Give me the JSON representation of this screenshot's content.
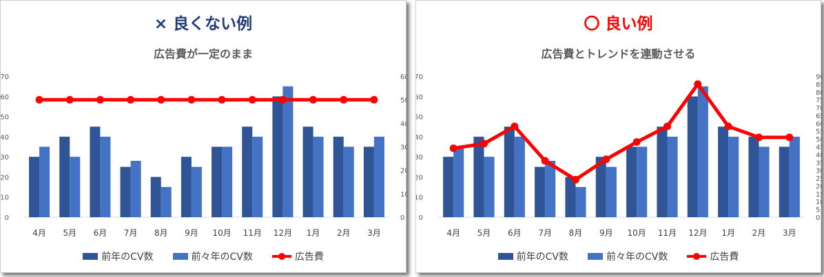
{
  "left": {
    "heading": "× 良くない例",
    "subtitle": "広告費が一定のまま"
  },
  "right": {
    "heading": "〇 良い例",
    "subtitle": "広告費とトレンドを連動させる"
  },
  "legend": {
    "prev_year": "前年のCV数",
    "two_years_ago": "前々年のCV数",
    "ad_cost": "広告費"
  },
  "colors": {
    "prev_year": "#2f5597",
    "two_years_ago": "#4472c4",
    "ad_cost": "#ff0000"
  },
  "chart_data": [
    {
      "type": "bar",
      "title": "広告費が一定のまま",
      "categories": [
        "4月",
        "5月",
        "6月",
        "7月",
        "8月",
        "9月",
        "10月",
        "11月",
        "12月",
        "1月",
        "2月",
        "3月"
      ],
      "ylim": [
        0,
        70
      ],
      "y2lim": [
        0,
        60
      ],
      "yticks": [
        0,
        10,
        20,
        30,
        40,
        50,
        60,
        70
      ],
      "y2ticks": [
        0,
        10,
        20,
        30,
        40,
        50,
        60
      ],
      "grid": false,
      "legend_position": "bottom",
      "series": [
        {
          "name": "前年のCV数",
          "type": "bar",
          "axis": "left",
          "values": [
            30,
            40,
            45,
            25,
            20,
            30,
            35,
            45,
            60,
            45,
            40,
            35
          ]
        },
        {
          "name": "前々年のCV数",
          "type": "bar",
          "axis": "left",
          "values": [
            35,
            30,
            40,
            28,
            15,
            25,
            35,
            40,
            65,
            40,
            35,
            40
          ]
        },
        {
          "name": "広告費",
          "type": "line",
          "axis": "right",
          "values": [
            50,
            50,
            50,
            50,
            50,
            50,
            50,
            50,
            50,
            50,
            50,
            50
          ]
        }
      ]
    },
    {
      "type": "bar",
      "title": "広告費とトレンドを連動させる",
      "categories": [
        "4月",
        "5月",
        "6月",
        "7月",
        "8月",
        "9月",
        "10月",
        "11月",
        "12月",
        "1月",
        "2月",
        "3月"
      ],
      "ylim": [
        0,
        70
      ],
      "y2lim": [
        0,
        90
      ],
      "yticks": [
        0,
        10,
        20,
        30,
        40,
        50,
        60,
        70
      ],
      "y2ticks": [
        0,
        5,
        10,
        15,
        20,
        25,
        30,
        35,
        40,
        45,
        50,
        55,
        60,
        65,
        70,
        75,
        80,
        85,
        90
      ],
      "grid": false,
      "legend_position": "bottom",
      "series": [
        {
          "name": "前年のCV数",
          "type": "bar",
          "axis": "left",
          "values": [
            30,
            40,
            45,
            25,
            20,
            30,
            35,
            45,
            60,
            45,
            40,
            35
          ]
        },
        {
          "name": "前々年のCV数",
          "type": "bar",
          "axis": "left",
          "values": [
            35,
            30,
            40,
            28,
            15,
            25,
            35,
            40,
            65,
            40,
            35,
            40
          ]
        },
        {
          "name": "広告費",
          "type": "line",
          "axis": "right",
          "values": [
            44,
            47,
            58,
            36,
            24,
            37,
            48,
            58,
            85,
            58,
            51,
            51
          ]
        }
      ]
    }
  ]
}
